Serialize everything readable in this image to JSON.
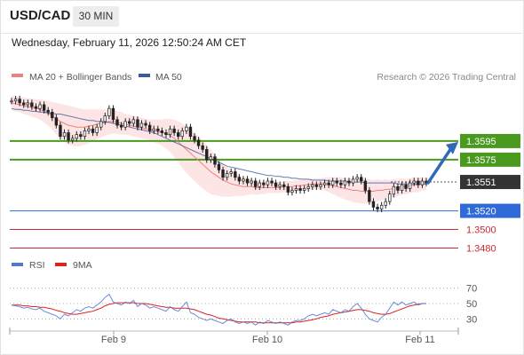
{
  "header": {
    "symbol": "USD/CAD",
    "timeframe": "30 MIN",
    "datetime": "Wednesday, February 11, 2026 12:50:24 AM CET"
  },
  "legend": {
    "ma20": {
      "label": "MA 20 + Bollinger Bands",
      "color": "#f08080"
    },
    "ma50": {
      "label": "MA 50",
      "color": "#3a5aa0"
    },
    "credit": "Research © 2026 Trading Central"
  },
  "chart_data": [
    {
      "type": "line",
      "name": "price",
      "xlabel": "",
      "ylabel": "",
      "ylim": [
        1.347,
        1.3655
      ],
      "x_ticks": [
        "Feb 9",
        "Feb 10",
        "Feb 11"
      ],
      "current_price": 1.3551,
      "levels": [
        {
          "value": 1.3595,
          "label": "1.3595",
          "kind": "resistance",
          "color": "#4a9a1f"
        },
        {
          "value": 1.3575,
          "label": "1.3575",
          "kind": "resistance",
          "color": "#4a9a1f"
        },
        {
          "value": 1.3551,
          "label": "1.3551",
          "kind": "last",
          "color": "#333333"
        },
        {
          "value": 1.352,
          "label": "1.3520",
          "kind": "pivot",
          "color": "#2f6ad8"
        },
        {
          "value": 1.35,
          "label": "1.3500",
          "kind": "support",
          "color": "#cc2a2a"
        },
        {
          "value": 1.348,
          "label": "1.3480",
          "kind": "support",
          "color": "#cc2a2a"
        }
      ],
      "closes": [
        1.3638,
        1.364,
        1.3636,
        1.3634,
        1.3636,
        1.3632,
        1.363,
        1.3634,
        1.3628,
        1.3626,
        1.362,
        1.3612,
        1.36,
        1.3604,
        1.3596,
        1.3598,
        1.3602,
        1.36,
        1.3606,
        1.3608,
        1.3604,
        1.361,
        1.3616,
        1.3622,
        1.363,
        1.3618,
        1.3612,
        1.361,
        1.3616,
        1.3614,
        1.3618,
        1.361,
        1.3614,
        1.3612,
        1.3606,
        1.3608,
        1.3606,
        1.3604,
        1.3602,
        1.3608,
        1.3604,
        1.36,
        1.3606,
        1.361,
        1.36,
        1.3596,
        1.359,
        1.3586,
        1.3575,
        1.3578,
        1.357,
        1.3564,
        1.3556,
        1.356,
        1.3562,
        1.3556,
        1.3552,
        1.3554,
        1.355,
        1.3552,
        1.3546,
        1.355,
        1.3548,
        1.3552,
        1.355,
        1.3546,
        1.3548,
        1.3546,
        1.354,
        1.3542,
        1.3544,
        1.3542,
        1.3544,
        1.3546,
        1.3548,
        1.3546,
        1.3548,
        1.355,
        1.3548,
        1.3552,
        1.355,
        1.3548,
        1.3552,
        1.355,
        1.3554,
        1.3556,
        1.3552,
        1.3542,
        1.353,
        1.3524,
        1.3522,
        1.3526,
        1.353,
        1.3538,
        1.3546,
        1.3542,
        1.3548,
        1.3544,
        1.355,
        1.3552,
        1.3548,
        1.3552,
        1.355
      ],
      "ma20": [
        1.3636,
        1.3635,
        1.3634,
        1.3633,
        1.3632,
        1.3631,
        1.363,
        1.3629,
        1.3627,
        1.3625,
        1.3622,
        1.3619,
        1.3616,
        1.3614,
        1.3612,
        1.3611,
        1.361,
        1.361,
        1.361,
        1.3611,
        1.3612,
        1.3613,
        1.3614,
        1.3615,
        1.3616,
        1.3616,
        1.3615,
        1.3614,
        1.3613,
        1.3612,
        1.3611,
        1.361,
        1.3609,
        1.3608,
        1.3607,
        1.3606,
        1.3605,
        1.3604,
        1.3603,
        1.3601,
        1.3598,
        1.3594,
        1.359,
        1.3586,
        1.3582,
        1.3578,
        1.3574,
        1.357,
        1.3566,
        1.3562,
        1.3559,
        1.3556,
        1.3553,
        1.3551,
        1.3549,
        1.3548,
        1.3547,
        1.3546,
        1.3546,
        1.3546,
        1.3545,
        1.3545,
        1.3545,
        1.3545,
        1.3545,
        1.3545,
        1.3545,
        1.3546,
        1.3546,
        1.3546,
        1.3547,
        1.3547,
        1.3548,
        1.3548,
        1.3549,
        1.3549,
        1.3549,
        1.3549,
        1.3548,
        1.3547,
        1.3546,
        1.3545,
        1.3544,
        1.3543,
        1.3542,
        1.3542,
        1.3541,
        1.3541,
        1.3541,
        1.3541,
        1.3542,
        1.3542,
        1.3543,
        1.3543,
        1.3544,
        1.3545,
        1.3546,
        1.3546,
        1.3547,
        1.3548,
        1.3548,
        1.3549,
        1.3549
      ],
      "ma50": [
        1.363,
        1.3629,
        1.3629,
        1.3628,
        1.3628,
        1.3627,
        1.3627,
        1.3626,
        1.3626,
        1.3625,
        1.3625,
        1.3624,
        1.3624,
        1.3623,
        1.3622,
        1.3621,
        1.362,
        1.3619,
        1.3618,
        1.3617,
        1.3617,
        1.3616,
        1.3616,
        1.3615,
        1.3615,
        1.3614,
        1.3613,
        1.3612,
        1.3611,
        1.361,
        1.3609,
        1.3608,
        1.3607,
        1.3606,
        1.3605,
        1.3604,
        1.3602,
        1.36,
        1.3598,
        1.3596,
        1.3594,
        1.3592,
        1.359,
        1.3588,
        1.3586,
        1.3584,
        1.3582,
        1.358,
        1.3578,
        1.3576,
        1.3574,
        1.3572,
        1.357,
        1.3568,
        1.3567,
        1.3566,
        1.3565,
        1.3564,
        1.3563,
        1.3562,
        1.3561,
        1.356,
        1.3559,
        1.3558,
        1.3558,
        1.3557,
        1.3557,
        1.3556,
        1.3556,
        1.3555,
        1.3555,
        1.3554,
        1.3554,
        1.3554,
        1.3553,
        1.3553,
        1.3553,
        1.3553,
        1.3552,
        1.3552,
        1.3552,
        1.3552,
        1.3552,
        1.3551,
        1.3551,
        1.3551,
        1.3551,
        1.355,
        1.355,
        1.355,
        1.355,
        1.355,
        1.355,
        1.355,
        1.355,
        1.3549,
        1.3549,
        1.3549,
        1.3549,
        1.3549,
        1.3549,
        1.3549,
        1.3549
      ],
      "band_width": [
        0.0008,
        0.0008,
        0.0008,
        0.0009,
        0.0009,
        0.001,
        0.001,
        0.0011,
        0.0012,
        0.0013,
        0.0015,
        0.0017,
        0.0019,
        0.002,
        0.0021,
        0.0021,
        0.0021,
        0.002,
        0.0019,
        0.0018,
        0.0017,
        0.0016,
        0.0015,
        0.0014,
        0.0014,
        0.0013,
        0.0012,
        0.0012,
        0.0011,
        0.0011,
        0.0011,
        0.0011,
        0.0011,
        0.0011,
        0.0011,
        0.0012,
        0.0013,
        0.0014,
        0.0016,
        0.0018,
        0.002,
        0.0022,
        0.0024,
        0.0025,
        0.0026,
        0.0026,
        0.0026,
        0.0026,
        0.0025,
        0.0024,
        0.0022,
        0.002,
        0.0018,
        0.0016,
        0.0014,
        0.0012,
        0.0011,
        0.001,
        0.0009,
        0.0008,
        0.0008,
        0.0007,
        0.0007,
        0.0006,
        0.0006,
        0.0006,
        0.0006,
        0.0006,
        0.0006,
        0.0006,
        0.0006,
        0.0006,
        0.0006,
        0.0006,
        0.0006,
        0.0006,
        0.0006,
        0.0007,
        0.0008,
        0.0009,
        0.001,
        0.0011,
        0.0012,
        0.0012,
        0.0013,
        0.0013,
        0.0013,
        0.0013,
        0.0013,
        0.0012,
        0.0012,
        0.0011,
        0.0011,
        0.001,
        0.001,
        0.0009,
        0.0009,
        0.0008,
        0.0008,
        0.0008,
        0.0008,
        0.0007,
        0.0007
      ],
      "forecast_target": 1.3595
    },
    {
      "type": "line",
      "name": "rsi",
      "legend": [
        {
          "label": "RSI",
          "color": "#5577cc"
        },
        {
          "label": "9MA",
          "color": "#dd2222"
        }
      ],
      "ylim": [
        20,
        80
      ],
      "y_ticks": [
        70,
        50,
        30
      ],
      "rsi": [
        48,
        47,
        46,
        44,
        45,
        43,
        42,
        44,
        40,
        38,
        36,
        34,
        30,
        36,
        34,
        38,
        42,
        40,
        44,
        46,
        44,
        48,
        52,
        58,
        62,
        52,
        50,
        48,
        52,
        50,
        54,
        46,
        50,
        48,
        44,
        46,
        44,
        42,
        40,
        46,
        42,
        40,
        46,
        52,
        38,
        36,
        32,
        30,
        28,
        30,
        28,
        26,
        24,
        28,
        30,
        26,
        24,
        26,
        24,
        26,
        22,
        26,
        24,
        28,
        26,
        24,
        26,
        24,
        22,
        26,
        28,
        28,
        30,
        34,
        36,
        34,
        36,
        38,
        36,
        42,
        40,
        38,
        42,
        40,
        46,
        50,
        44,
        36,
        30,
        28,
        26,
        32,
        36,
        44,
        52,
        48,
        52,
        48,
        50,
        52,
        48,
        50,
        50
      ],
      "ma9": [
        48,
        48,
        48,
        47,
        47,
        46,
        46,
        45,
        45,
        44,
        43,
        41,
        40,
        38,
        37,
        36,
        36,
        37,
        38,
        39,
        40,
        42,
        44,
        47,
        49,
        50,
        51,
        51,
        51,
        51,
        51,
        50,
        50,
        50,
        49,
        48,
        47,
        46,
        45,
        45,
        44,
        44,
        44,
        44,
        43,
        42,
        40,
        38,
        36,
        35,
        33,
        31,
        30,
        29,
        28,
        27,
        26,
        26,
        26,
        26,
        26,
        25,
        25,
        25,
        25,
        25,
        25,
        25,
        25,
        25,
        26,
        26,
        27,
        28,
        29,
        30,
        32,
        33,
        34,
        36,
        37,
        38,
        39,
        40,
        41,
        42,
        42,
        41,
        40,
        38,
        37,
        36,
        36,
        37,
        39,
        41,
        43,
        45,
        47,
        48,
        49,
        50,
        50
      ]
    }
  ]
}
